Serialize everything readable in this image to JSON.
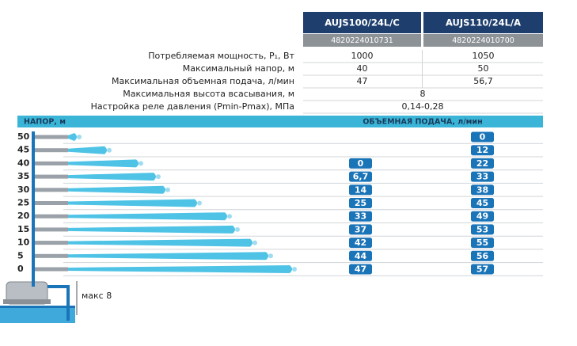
{
  "header": {
    "models": [
      {
        "name": "AUJS100/24L/C",
        "code": "4820224010731"
      },
      {
        "name": "AUJS110/24L/A",
        "code": "4820224010700"
      }
    ]
  },
  "specs": [
    {
      "label": "Потребляемая мощность, P₁, Вт",
      "values": [
        "1000",
        "1050"
      ]
    },
    {
      "label": "Максимальный напор, м",
      "values": [
        "40",
        "50"
      ]
    },
    {
      "label": "Максимальная объемная подача, л/мин",
      "values": [
        "47",
        "56,7"
      ]
    },
    {
      "label": "Максимальная высота всасывания, м",
      "value": "8"
    },
    {
      "label": "Настройка реле давления (Pmin-Pmax), МПа",
      "value": "0,14-0,28"
    }
  ],
  "flow_table": {
    "head_label": "НАПОР, м",
    "flow_label": "ОБЪЕМНАЯ ПОДАЧА, л/мин",
    "rows": [
      {
        "head": "50",
        "flow": [
          null,
          "0"
        ]
      },
      {
        "head": "45",
        "flow": [
          null,
          "12"
        ]
      },
      {
        "head": "40",
        "flow": [
          "0",
          "22"
        ]
      },
      {
        "head": "35",
        "flow": [
          "6,7",
          "33"
        ]
      },
      {
        "head": "30",
        "flow": [
          "14",
          "38"
        ]
      },
      {
        "head": "25",
        "flow": [
          "25",
          "45"
        ]
      },
      {
        "head": "20",
        "flow": [
          "33",
          "49"
        ]
      },
      {
        "head": "15",
        "flow": [
          "37",
          "53"
        ]
      },
      {
        "head": "10",
        "flow": [
          "42",
          "55"
        ]
      },
      {
        "head": "5",
        "flow": [
          "44",
          "56"
        ]
      },
      {
        "head": "0",
        "flow": [
          "47",
          "57"
        ]
      }
    ]
  },
  "diagram": {
    "suction_label": "макс 8"
  }
}
